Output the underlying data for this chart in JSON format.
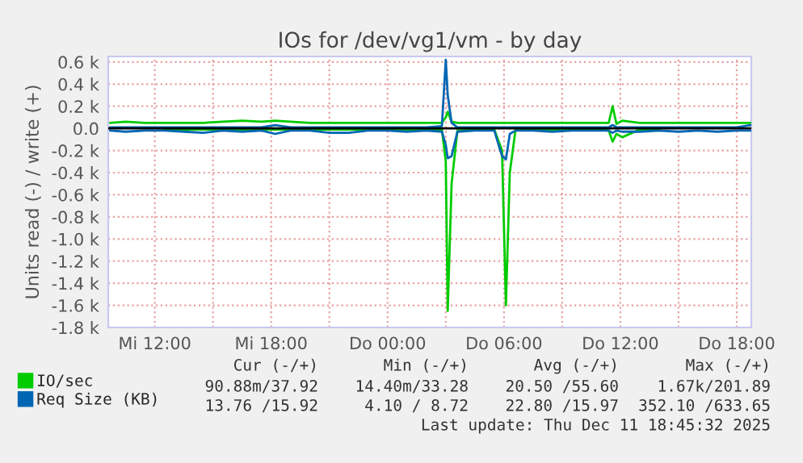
{
  "chart_data": {
    "type": "line",
    "title": "IOs for /dev/vg1/vm - by day",
    "ylabel": "Units read (-) / write (+)",
    "x": [
      "2025-12-10T09:42",
      "2025-12-10T10:30",
      "2025-12-10T11:30",
      "2025-12-10T12:30",
      "2025-12-10T13:30",
      "2025-12-10T14:30",
      "2025-12-10T15:30",
      "2025-12-10T16:30",
      "2025-12-10T17:30",
      "2025-12-10T18:12",
      "2025-12-10T19:00",
      "2025-12-10T20:00",
      "2025-12-10T21:00",
      "2025-12-10T22:00",
      "2025-12-10T23:00",
      "2025-12-11T00:00",
      "2025-12-11T01:00",
      "2025-12-11T02:00",
      "2025-12-11T02:48",
      "2025-12-11T03:00",
      "2025-12-11T03:06",
      "2025-12-11T03:18",
      "2025-12-11T03:36",
      "2025-12-11T04:30",
      "2025-12-11T05:30",
      "2025-12-11T05:54",
      "2025-12-11T06:06",
      "2025-12-11T06:18",
      "2025-12-11T06:36",
      "2025-12-11T07:30",
      "2025-12-11T08:30",
      "2025-12-11T09:30",
      "2025-12-11T10:30",
      "2025-12-11T11:24",
      "2025-12-11T11:36",
      "2025-12-11T11:48",
      "2025-12-11T12:06",
      "2025-12-11T13:00",
      "2025-12-11T14:00",
      "2025-12-11T15:00",
      "2025-12-11T16:00",
      "2025-12-11T17:00",
      "2025-12-11T18:00",
      "2025-12-11T18:42"
    ],
    "series": [
      {
        "name": "IO/sec",
        "color": "#00cc00",
        "values": [
          0.05,
          0.06,
          0.05,
          0.05,
          0.05,
          0.05,
          0.06,
          0.07,
          0.06,
          0.07,
          0.06,
          0.05,
          0.05,
          0.05,
          0.05,
          0.05,
          0.05,
          0.05,
          0.05,
          0.1,
          0.15,
          0.06,
          0.05,
          0.05,
          0.05,
          0.05,
          0.05,
          0.05,
          0.05,
          0.05,
          0.05,
          0.05,
          0.05,
          0.05,
          0.2,
          0.04,
          0.07,
          0.05,
          0.05,
          0.05,
          0.05,
          0.05,
          0.05,
          0.05
        ]
      },
      {
        "color": "#00cc00",
        "values": [
          null,
          null,
          null,
          -0.01,
          -0.01,
          -0.01,
          -0.01,
          -0.01,
          -0.01,
          -0.01,
          -0.01,
          -0.01,
          -0.01,
          -0.01,
          -0.01,
          -0.01,
          -0.01,
          -0.01,
          -0.01,
          -0.3,
          -1.65,
          -0.5,
          -0.02,
          -0.01,
          -0.01,
          -0.2,
          -1.6,
          -0.4,
          -0.01,
          -0.01,
          -0.01,
          -0.01,
          -0.01,
          -0.02,
          -0.12,
          -0.05,
          -0.08,
          -0.01,
          -0.01,
          null,
          null,
          null,
          null,
          null
        ]
      },
      {
        "name": "Req Size (KB)",
        "color": "#0066b3",
        "values": [
          0.01,
          0.01,
          0.01,
          0.01,
          0.01,
          0.01,
          0.01,
          0.01,
          0.01,
          0.03,
          0.01,
          0.01,
          0.01,
          0.01,
          0.01,
          0.01,
          0.01,
          0.01,
          0.02,
          0.62,
          0.3,
          0.05,
          0.01,
          0.01,
          0.01,
          0.01,
          0.01,
          0.01,
          0.01,
          0.01,
          0.01,
          0.01,
          0.01,
          0.01,
          0.03,
          0.01,
          0.01,
          0.01,
          0.01,
          0.01,
          0.01,
          0.01,
          0.01,
          0.03
        ]
      },
      {
        "color": "#0066b3",
        "values": [
          -0.02,
          -0.03,
          -0.02,
          -0.02,
          -0.03,
          -0.04,
          -0.02,
          -0.03,
          -0.02,
          -0.05,
          -0.02,
          -0.02,
          -0.04,
          -0.04,
          -0.02,
          -0.02,
          -0.03,
          -0.02,
          -0.03,
          -0.15,
          -0.27,
          -0.25,
          -0.03,
          -0.02,
          -0.02,
          -0.25,
          -0.28,
          -0.05,
          -0.02,
          -0.02,
          -0.03,
          -0.02,
          -0.02,
          -0.02,
          -0.04,
          -0.02,
          -0.03,
          -0.03,
          -0.02,
          -0.03,
          -0.02,
          -0.03,
          -0.02,
          -0.02
        ]
      }
    ],
    "xlim": [
      "2025-12-10T09:36",
      "2025-12-11T18:45"
    ],
    "xticks": [
      {
        "value": "2025-12-10T12:00",
        "label": "Mi 12:00"
      },
      {
        "value": "2025-12-10T15:00",
        "label": null
      },
      {
        "value": "2025-12-10T18:00",
        "label": "Mi 18:00"
      },
      {
        "value": "2025-12-10T21:00",
        "label": null
      },
      {
        "value": "2025-12-11T00:00",
        "label": "Do 00:00"
      },
      {
        "value": "2025-12-11T03:00",
        "label": null
      },
      {
        "value": "2025-12-11T06:00",
        "label": "Do 06:00"
      },
      {
        "value": "2025-12-11T09:00",
        "label": null
      },
      {
        "value": "2025-12-11T12:00",
        "label": "Do 12:00"
      },
      {
        "value": "2025-12-11T15:00",
        "label": null
      },
      {
        "value": "2025-12-11T18:00",
        "label": "Do 18:00"
      }
    ],
    "ylim": [
      -1.8,
      0.65
    ],
    "yticks": [
      {
        "value": 0.6,
        "label": "0.6 k"
      },
      {
        "value": 0.4,
        "label": "0.4 k"
      },
      {
        "value": 0.2,
        "label": "0.2 k"
      },
      {
        "value": 0,
        "label": "0.0"
      },
      {
        "value": -0.2,
        "label": "-0.2 k"
      },
      {
        "value": -0.4,
        "label": "-0.4 k"
      },
      {
        "value": -0.6,
        "label": "-0.6 k"
      },
      {
        "value": -0.8,
        "label": "-0.8 k"
      },
      {
        "value": -1.0,
        "label": "-1.0 k"
      },
      {
        "value": -1.2,
        "label": "-1.2 k"
      },
      {
        "value": -1.4,
        "label": "-1.4 k"
      },
      {
        "value": -1.6,
        "label": "-1.6 k"
      },
      {
        "value": -1.8,
        "label": "-1.8 k"
      }
    ],
    "ref_lines": [
      {
        "axis": "y",
        "value": 0,
        "color": "#000000"
      }
    ],
    "grid": true,
    "legend": "bottom left",
    "marker": "none",
    "line_style": "solid",
    "annotations": [
      "Cur (-/+)",
      "Min (-/+)",
      "Avg (-/+)",
      "Max (-/+)",
      "90.88m/37.92",
      "14.40m/33.28",
      "20.50 /55.60",
      "1.67k/201.89",
      "13.76 /15.92",
      "4.10 / 8.72",
      "22.80 /15.97",
      "352.10 /633.65",
      "Last update: Thu Dec 11 18:45:32 2025"
    ]
  }
}
